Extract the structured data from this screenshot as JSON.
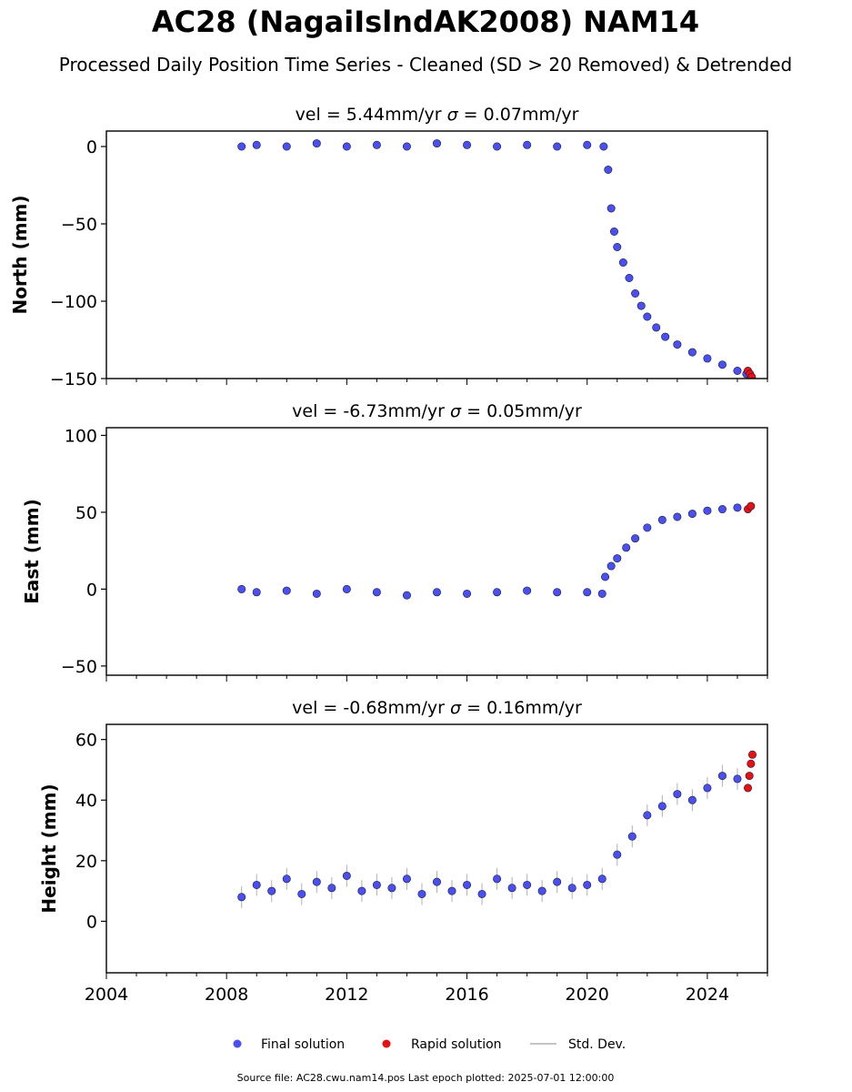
{
  "header": {
    "title": "AC28 (NagaiIslndAK2008) NAM14",
    "subtitle": "Processed Daily Position Time Series - Cleaned (SD > 20 Removed) & Detrended"
  },
  "legend": {
    "final": "Final solution",
    "rapid": "Rapid solution",
    "std": "Std. Dev."
  },
  "footer": {
    "source": "Source file: AC28.cwu.nam14.pos  Last epoch plotted: 2025-07-01 12:00:00"
  },
  "colors": {
    "final": "#4a4ff0",
    "rapid": "#e81010",
    "std": "#b0b0b0"
  },
  "chart_data": [
    {
      "type": "scatter",
      "title_parts": [
        "vel = 5.44mm/yr",
        "= 0.07mm/yr"
      ],
      "sigma_symbol": "σ",
      "ylabel": "North (mm)",
      "xlim": [
        2004.0,
        2026.0
      ],
      "ylim": [
        -150,
        10
      ],
      "yticks": [
        0,
        -50,
        -100,
        -150
      ],
      "yticklabels": [
        "0",
        "−50",
        "−100",
        "−150"
      ],
      "xticks": [
        2004,
        2008,
        2012,
        2016,
        2020,
        2024
      ],
      "xticklabels": [],
      "series": [
        {
          "name": "Final solution",
          "x": [
            2008.5,
            2009.0,
            2010.0,
            2011.0,
            2012.0,
            2013.0,
            2014.0,
            2015.0,
            2016.0,
            2017.0,
            2018.0,
            2019.0,
            2020.0,
            2020.55,
            2020.7,
            2020.8,
            2020.9,
            2021.0,
            2021.2,
            2021.4,
            2021.6,
            2021.8,
            2022.0,
            2022.3,
            2022.6,
            2023.0,
            2023.5,
            2024.0,
            2024.5,
            2025.0,
            2025.3
          ],
          "y": [
            0,
            1,
            0,
            2,
            0,
            1,
            0,
            2,
            1,
            0,
            1,
            0,
            1,
            0,
            -15,
            -40,
            -55,
            -65,
            -75,
            -85,
            -95,
            -103,
            -110,
            -117,
            -123,
            -128,
            -133,
            -137,
            -141,
            -145,
            -147
          ]
        },
        {
          "name": "Rapid solution",
          "x": [
            2025.35,
            2025.42,
            2025.48
          ],
          "y": [
            -145,
            -147,
            -149
          ]
        }
      ]
    },
    {
      "type": "scatter",
      "title_parts": [
        "vel = -6.73mm/yr",
        "= 0.05mm/yr"
      ],
      "sigma_symbol": "σ",
      "ylabel": "East (mm)",
      "xlim": [
        2004.0,
        2026.0
      ],
      "ylim": [
        -56,
        105
      ],
      "yticks": [
        100,
        50,
        0,
        -50
      ],
      "yticklabels": [
        "100",
        "50",
        "0",
        "−50"
      ],
      "xticks": [
        2004,
        2008,
        2012,
        2016,
        2020,
        2024
      ],
      "xticklabels": [],
      "series": [
        {
          "name": "Final solution",
          "x": [
            2008.5,
            2009.0,
            2010.0,
            2011.0,
            2012.0,
            2013.0,
            2014.0,
            2015.0,
            2016.0,
            2017.0,
            2018.0,
            2019.0,
            2020.0,
            2020.5,
            2020.6,
            2020.8,
            2021.0,
            2021.3,
            2021.6,
            2022.0,
            2022.5,
            2023.0,
            2023.5,
            2024.0,
            2024.5,
            2025.0
          ],
          "y": [
            0,
            -2,
            -1,
            -3,
            0,
            -2,
            -4,
            -2,
            -3,
            -2,
            -1,
            -2,
            -2,
            -3,
            8,
            15,
            20,
            27,
            33,
            40,
            45,
            47,
            49,
            51,
            52,
            53
          ]
        },
        {
          "name": "Rapid solution",
          "x": [
            2025.35,
            2025.45
          ],
          "y": [
            52,
            54
          ]
        }
      ]
    },
    {
      "type": "scatter",
      "title_parts": [
        "vel = -0.68mm/yr",
        "= 0.16mm/yr"
      ],
      "sigma_symbol": "σ",
      "ylabel": "Height (mm)",
      "xlim": [
        2004.0,
        2026.0
      ],
      "ylim": [
        -17,
        65
      ],
      "yticks": [
        60,
        40,
        20,
        0
      ],
      "yticklabels": [
        "60",
        "40",
        "20",
        "0"
      ],
      "xticks": [
        2004,
        2008,
        2012,
        2016,
        2020,
        2024
      ],
      "xticklabels": [
        "2004",
        "2008",
        "2012",
        "2016",
        "2020",
        "2024"
      ],
      "series": [
        {
          "name": "Final solution",
          "x": [
            2008.5,
            2009.0,
            2009.5,
            2010.0,
            2010.5,
            2011.0,
            2011.5,
            2012.0,
            2012.5,
            2013.0,
            2013.5,
            2014.0,
            2014.5,
            2015.0,
            2015.5,
            2016.0,
            2016.5,
            2017.0,
            2017.5,
            2018.0,
            2018.5,
            2019.0,
            2019.5,
            2020.0,
            2020.5,
            2021.0,
            2021.5,
            2022.0,
            2022.5,
            2023.0,
            2023.5,
            2024.0,
            2024.5,
            2025.0
          ],
          "y": [
            8,
            12,
            10,
            14,
            9,
            13,
            11,
            15,
            10,
            12,
            11,
            14,
            9,
            13,
            10,
            12,
            9,
            14,
            11,
            12,
            10,
            13,
            11,
            12,
            14,
            22,
            28,
            35,
            38,
            42,
            40,
            44,
            48,
            47
          ]
        },
        {
          "name": "Rapid solution",
          "x": [
            2025.35,
            2025.4,
            2025.45,
            2025.5
          ],
          "y": [
            44,
            48,
            52,
            55
          ]
        }
      ]
    }
  ]
}
